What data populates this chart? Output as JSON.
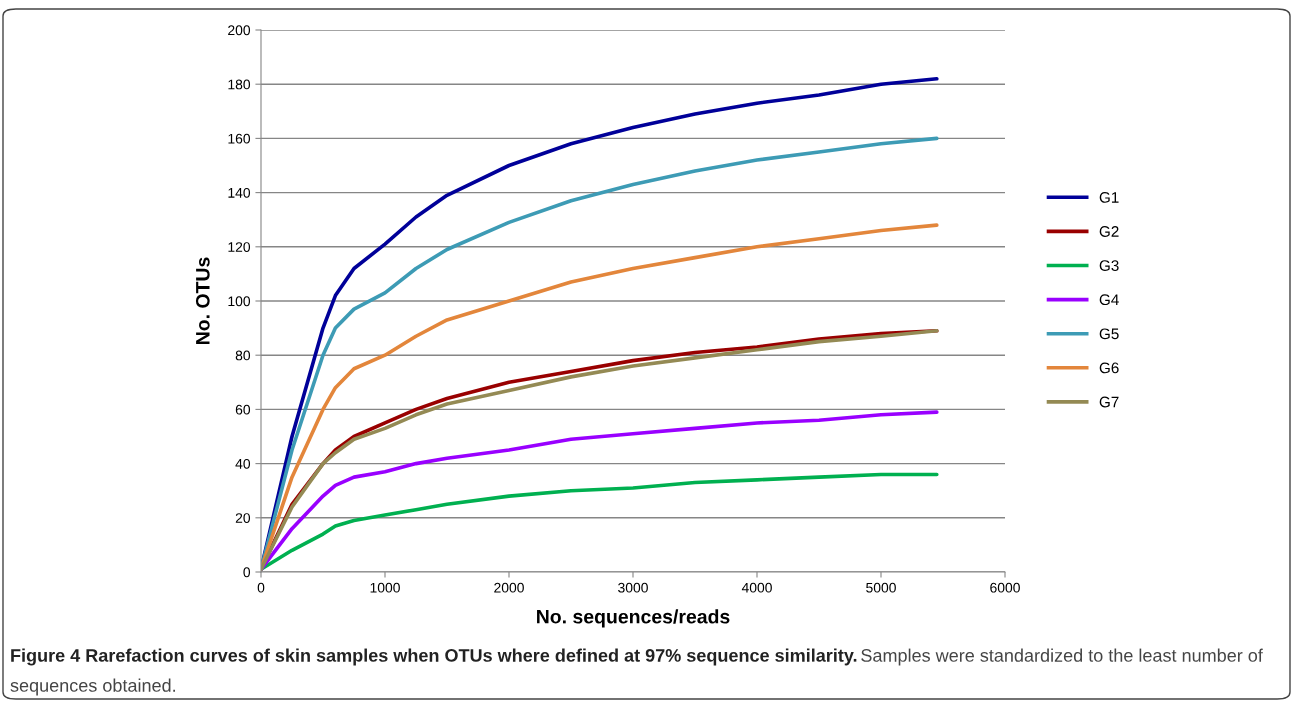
{
  "chart_data": {
    "type": "line",
    "xlabel": "No. sequences/reads",
    "ylabel": "No. OTUs",
    "x": [
      0,
      250,
      500,
      600,
      750,
      1000,
      1250,
      1500,
      2000,
      2500,
      3000,
      3500,
      4000,
      4500,
      5000,
      5450
    ],
    "series": [
      {
        "name": "G1",
        "color": "#000099",
        "values": [
          1,
          50,
          90,
          102,
          112,
          121,
          131,
          139,
          150,
          158,
          164,
          169,
          173,
          176,
          180,
          182
        ]
      },
      {
        "name": "G2",
        "color": "#990000",
        "values": [
          1,
          25,
          40,
          45,
          50,
          55,
          60,
          64,
          70,
          74,
          78,
          81,
          83,
          86,
          88,
          89
        ]
      },
      {
        "name": "G3",
        "color": "#00b050",
        "values": [
          1,
          8,
          14,
          17,
          19,
          21,
          23,
          25,
          28,
          30,
          31,
          33,
          34,
          35,
          36,
          36
        ]
      },
      {
        "name": "G4",
        "color": "#9900ff",
        "values": [
          1,
          16,
          28,
          32,
          35,
          37,
          40,
          42,
          45,
          49,
          51,
          53,
          55,
          56,
          58,
          59
        ]
      },
      {
        "name": "G5",
        "color": "#3d9bb5",
        "values": [
          1,
          45,
          80,
          90,
          97,
          103,
          112,
          119,
          129,
          137,
          143,
          148,
          152,
          155,
          158,
          160
        ]
      },
      {
        "name": "G6",
        "color": "#e3863b",
        "values": [
          1,
          35,
          60,
          68,
          75,
          80,
          87,
          93,
          100,
          107,
          112,
          116,
          120,
          123,
          126,
          128
        ]
      },
      {
        "name": "G7",
        "color": "#948a54",
        "values": [
          1,
          24,
          40,
          44,
          49,
          53,
          58,
          62,
          67,
          72,
          76,
          79,
          82,
          85,
          87,
          89
        ]
      }
    ],
    "xlim": [
      0,
      6000
    ],
    "xticks": [
      0,
      1000,
      2000,
      3000,
      4000,
      5000,
      6000
    ],
    "ylim": [
      0,
      200
    ],
    "yticks": [
      0,
      20,
      40,
      60,
      80,
      100,
      120,
      140,
      160,
      180,
      200
    ],
    "grid": "y",
    "legend": "right",
    "marker": "none",
    "line_style": "solid",
    "annotations": [
      "Figure 4 Rarefaction curves of skin samples when OTUs where defined at 97% sequence similarity.",
      "Samples were standardized to the least number of sequences obtained."
    ]
  }
}
